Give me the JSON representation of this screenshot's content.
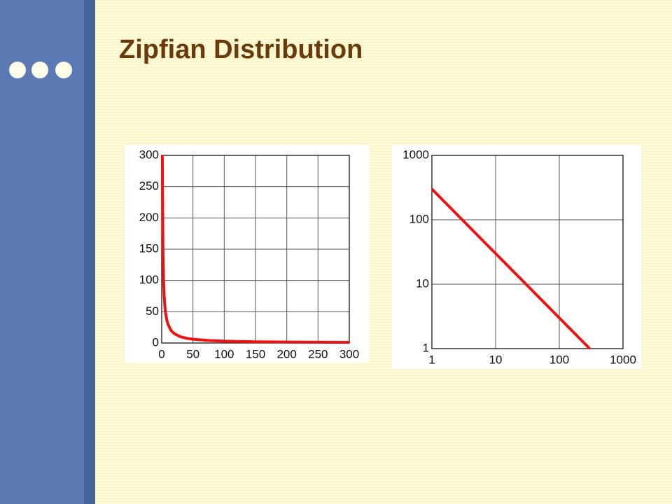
{
  "title": "Zipfian Distribution",
  "chart_data": [
    {
      "type": "line",
      "x": [
        1,
        2,
        3,
        4,
        5,
        6,
        8,
        10,
        15,
        20,
        30,
        40,
        50,
        75,
        100,
        150,
        200,
        250,
        300
      ],
      "values": [
        300,
        150,
        100,
        75,
        60,
        50,
        37.5,
        30,
        20,
        15,
        10,
        7.5,
        6,
        4,
        3,
        2,
        1.5,
        1.2,
        1
      ],
      "color": "#ee1111",
      "xlim": [
        0,
        300
      ],
      "ylim": [
        0,
        300
      ],
      "xticks": [
        0,
        50,
        100,
        150,
        200,
        250,
        300
      ],
      "yticks": [
        0,
        50,
        100,
        150,
        200,
        250,
        300
      ],
      "grid": true,
      "log": false
    },
    {
      "type": "line",
      "x": [
        1,
        10,
        100,
        300
      ],
      "values": [
        300,
        30,
        3,
        1
      ],
      "color": "#ee1111",
      "xlim": [
        1,
        1000
      ],
      "ylim": [
        1,
        1000
      ],
      "xticks": [
        1,
        10,
        100,
        1000
      ],
      "yticks": [
        1,
        10,
        100,
        1000
      ],
      "grid": true,
      "log": true
    }
  ]
}
